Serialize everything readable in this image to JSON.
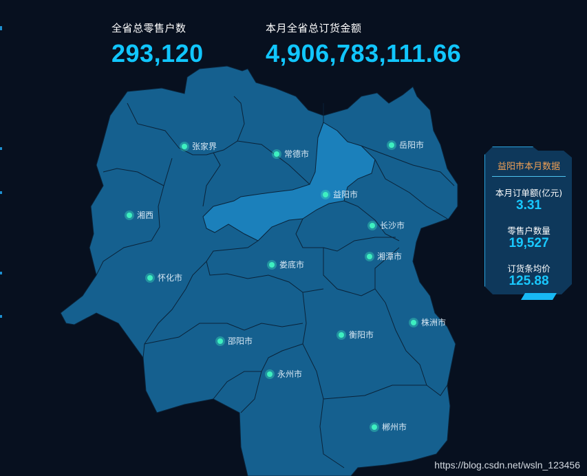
{
  "stats": {
    "retailers": {
      "label": "全省总零售户数",
      "value": "293,120"
    },
    "order_amount": {
      "label": "本月全省总订货金额",
      "value": "4,906,783,111.66"
    }
  },
  "map": {
    "colors": {
      "region": "#15608f",
      "selected": "#1b80bb",
      "border": "#0a2238",
      "marker": "#3ef0c0"
    },
    "selected_city": "益阳市",
    "cities": [
      "张家界",
      "常德市",
      "岳阳市",
      "湘西",
      "益阳市",
      "长沙市",
      "娄底市",
      "湘潭市",
      "怀化市",
      "株洲市",
      "邵阳市",
      "衡阳市",
      "永州市",
      "郴州市"
    ]
  },
  "panel": {
    "title": "益阳市本月数据",
    "order_label": "本月订单额(亿元)",
    "order_value": "3.31",
    "retail_label": "零售户数量",
    "retail_value": "19,527",
    "price_label": "订货条均价",
    "price_value": "125.88"
  },
  "watermark": "https://blog.csdn.net/wsln_123456"
}
